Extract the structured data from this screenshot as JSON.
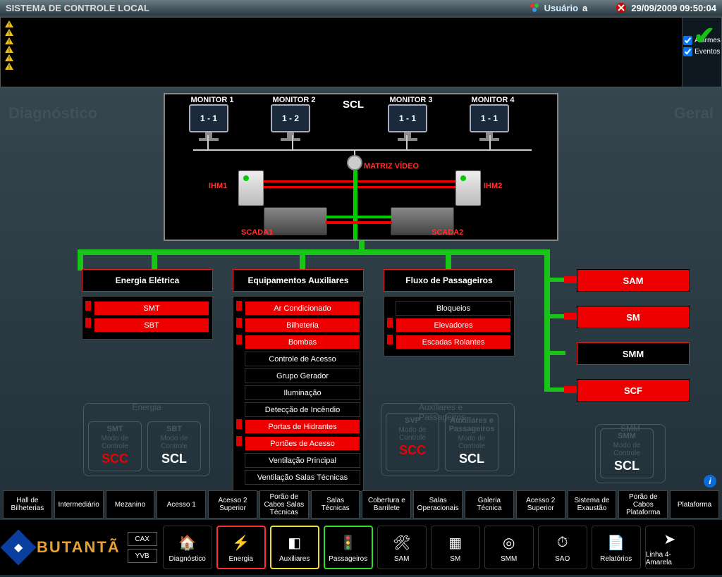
{
  "colors": {
    "green": "#19c419",
    "red": "#e00000",
    "accent_orange": "#e8a030",
    "hl_red": "#ff3030",
    "hl_yellow": "#eedd30",
    "hl_green": "#30dd30",
    "panel_bg": "#000000"
  },
  "titlebar": {
    "title": "SISTEMA DE CONTROLE LOCAL",
    "user_label": "Usuário",
    "user_value": "a",
    "datetime": "29/09/2009 09:50:04"
  },
  "alarms": {
    "rows": 6,
    "side_checks": [
      {
        "label": "Alarmes",
        "checked": true
      },
      {
        "label": "Eventos",
        "checked": true
      }
    ]
  },
  "side_labels": {
    "left": "Diagnóstico",
    "right": "Geral"
  },
  "diagram": {
    "scl": "SCL",
    "monitors": [
      {
        "label": "MONITOR 1",
        "screen": "1 - 1"
      },
      {
        "label": "MONITOR 2",
        "screen": "1 - 2"
      },
      {
        "label": "MONITOR 3",
        "screen": "1 - 1"
      },
      {
        "label": "MONITOR 4",
        "screen": "1 - 1"
      }
    ],
    "matrix": "MATRIZ VÍDEO",
    "ihm1": "IHM1",
    "ihm2": "IHM2",
    "scada1": "SCADA1",
    "scada2": "SCADA2"
  },
  "columns": {
    "energia": {
      "title": "Energia Elétrica",
      "items": [
        {
          "label": "SMT",
          "red": true
        },
        {
          "label": "SBT",
          "red": true
        }
      ]
    },
    "equip": {
      "title": "Equipamentos Auxiliares",
      "items": [
        {
          "label": "Ar Condicionado",
          "red": true
        },
        {
          "label": "Bilheteria",
          "red": true
        },
        {
          "label": "Bombas",
          "red": true
        },
        {
          "label": "Controle de Acesso",
          "red": false
        },
        {
          "label": "Grupo Gerador",
          "red": false
        },
        {
          "label": "Iluminação",
          "red": false
        },
        {
          "label": "Detecção de Incêndio",
          "red": false
        },
        {
          "label": "Portas de Hidrantes",
          "red": true
        },
        {
          "label": "Portões de Acesso",
          "red": true
        },
        {
          "label": "Ventilação Principal",
          "red": false
        },
        {
          "label": "Ventilação Salas Técnicas",
          "red": false
        }
      ]
    },
    "fluxo": {
      "title": "Fluxo de Passageiros",
      "items": [
        {
          "label": "Bloqueios",
          "red": false
        },
        {
          "label": "Elevadores",
          "red": true
        },
        {
          "label": "Escadas Rolantes",
          "red": true
        }
      ]
    }
  },
  "right_buttons": [
    {
      "label": "SAM",
      "red": true
    },
    {
      "label": "SM",
      "red": true
    },
    {
      "label": "SMM",
      "red": false
    },
    {
      "label": "SCF",
      "red": true
    }
  ],
  "mode_groups": {
    "energia": {
      "title": "Energia",
      "boxes": [
        {
          "title": "SMT",
          "label": "Modo de Controle",
          "value": "SCC",
          "red": true
        },
        {
          "title": "SBT",
          "label": "Modo de Controle",
          "value": "SCL",
          "red": false
        }
      ]
    },
    "auxpass": {
      "title": "Auxiliares e Passageiros",
      "boxes": [
        {
          "title": "SVP",
          "label": "Modo de Controle",
          "value": "SCC",
          "red": true
        },
        {
          "title": "Auxiliares e Passageiros",
          "label": "Modo de Controle",
          "value": "SCL",
          "red": false
        }
      ]
    },
    "smm": {
      "title": "SMM",
      "boxes": [
        {
          "title": "SMM",
          "label": "Modo de Controle",
          "value": "SCL",
          "red": false
        }
      ]
    }
  },
  "bottom_tabs": [
    "Hall de Bilheterias",
    "Intermediário",
    "Mezanino",
    "Acesso 1",
    "Acesso 2 Superior",
    "Porão de Cabos Salas Técnicas",
    "Salas Técnicas",
    "Cobertura e Barrilete",
    "Salas Operacionais",
    "Galeria Técnica",
    "Acesso 2 Superior",
    "Sistema de Exaustão",
    "Porão de Cabos Plataforma",
    "Plataforma"
  ],
  "station": {
    "name": "BUTANTÃ",
    "mini": [
      "CAX",
      "YVB"
    ]
  },
  "nav": [
    {
      "label": "Diagnóstico",
      "icon": "🏠",
      "hl": null
    },
    {
      "label": "Energia",
      "icon": "⚡",
      "hl": "#ff3030"
    },
    {
      "label": "Auxiliares",
      "icon": "◧",
      "hl": "#eedd30"
    },
    {
      "label": "Passageiros",
      "icon": "🚦",
      "hl": "#30dd30"
    },
    {
      "label": "SAM",
      "icon": "🛠",
      "hl": null
    },
    {
      "label": "SM",
      "icon": "▦",
      "hl": null
    },
    {
      "label": "SMM",
      "icon": "◎",
      "hl": null
    },
    {
      "label": "SAO",
      "icon": "⏱",
      "hl": null
    },
    {
      "label": "Relatórios",
      "icon": "📄",
      "hl": null
    },
    {
      "label": "Linha 4-Amarela",
      "icon": "➤",
      "hl": null
    }
  ]
}
